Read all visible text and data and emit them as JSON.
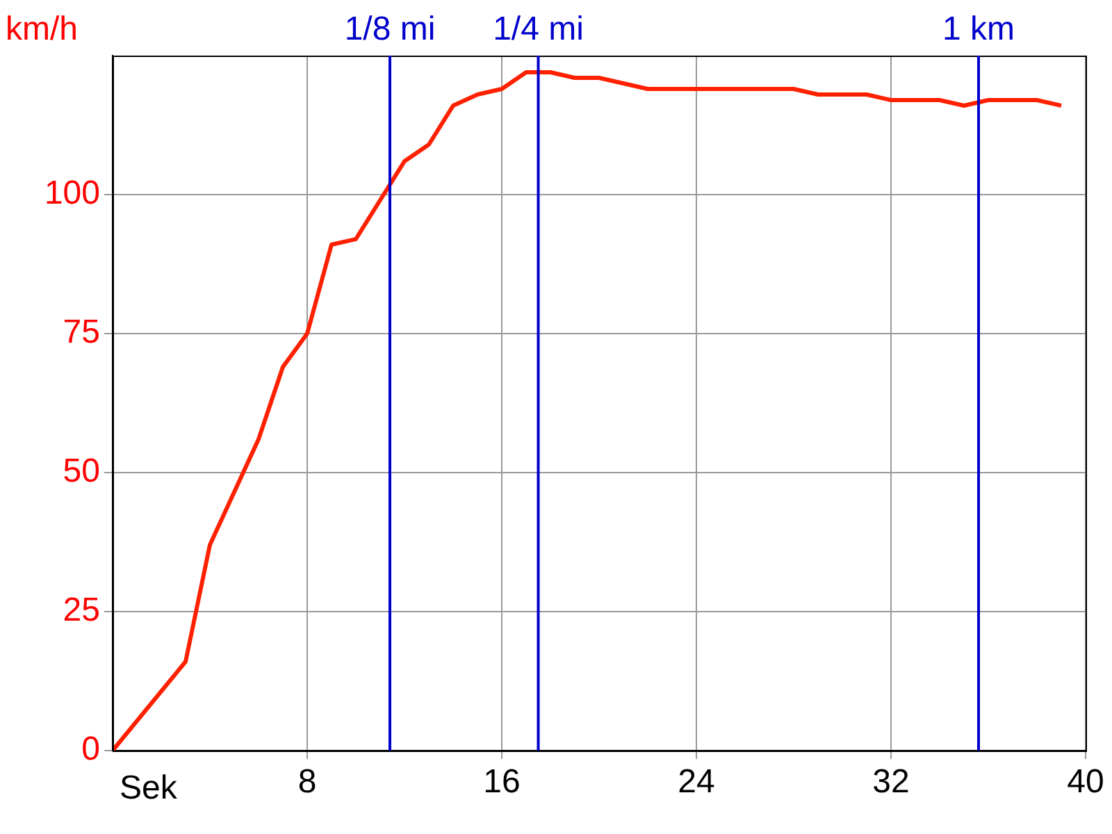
{
  "chart_data": {
    "type": "line",
    "ylabel": "km/h",
    "xlabel": "Sek",
    "x": [
      0,
      3,
      4,
      6,
      7,
      8,
      9,
      10,
      11,
      12,
      13,
      14,
      15,
      16,
      17,
      18,
      19,
      20,
      21,
      22,
      28,
      29,
      31,
      32,
      34,
      35,
      36,
      38,
      39
    ],
    "series": [
      {
        "color": "#ff2000",
        "values": [
          0,
          16,
          37,
          56,
          69,
          75,
          91,
          92,
          99,
          106,
          109,
          116,
          118,
          119,
          122,
          122,
          121,
          121,
          120,
          119,
          119,
          118,
          118,
          117,
          117,
          116,
          117,
          117,
          116
        ]
      }
    ],
    "xlim": [
      0,
      40
    ],
    "xticks": [
      8,
      16,
      24,
      32,
      40
    ],
    "ylim": [
      0,
      125
    ],
    "yticks": [
      0,
      25,
      50,
      75,
      100
    ],
    "grid": true,
    "legend": false,
    "marker": "none",
    "line_style": "solid",
    "ref_lines": [
      {
        "axis": "x",
        "value": 11.4,
        "label": "1/8 mi",
        "color": "#0000cc"
      },
      {
        "axis": "x",
        "value": 17.5,
        "label": "1/4 mi",
        "color": "#0000cc"
      },
      {
        "axis": "x",
        "value": 35.6,
        "label": "1 km",
        "color": "#0000cc"
      }
    ]
  }
}
